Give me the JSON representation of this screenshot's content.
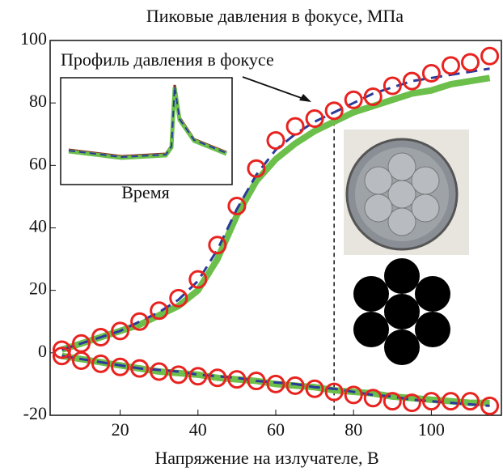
{
  "chart_data": {
    "type": "line",
    "title": "Пиковые давления в фокусе, МПа",
    "xlabel": "Напряжение на излучателе, В",
    "annotations": [
      "Профиль давления в фокусе",
      "Время"
    ],
    "x": [
      5,
      10,
      15,
      20,
      25,
      30,
      35,
      40,
      45,
      50,
      55,
      60,
      65,
      70,
      75,
      80,
      85,
      90,
      95,
      100,
      105,
      110,
      115
    ],
    "series": [
      {
        "type": "line",
        "color": "#6cbf4a",
        "dashed": false,
        "values": [
          1,
          3,
          5,
          7,
          9,
          12,
          15,
          20,
          30,
          44,
          55,
          62,
          67,
          71,
          74,
          77,
          79,
          81,
          83,
          84,
          86,
          87,
          88
        ]
      },
      {
        "type": "line",
        "color": "#6cbf4a",
        "dashed": false,
        "values": [
          -1,
          -2,
          -3,
          -4,
          -5,
          -6,
          -6.5,
          -7,
          -8,
          -8.5,
          -9,
          -10,
          -10.5,
          -11,
          -12,
          -12.5,
          -13,
          -14,
          -14.5,
          -15,
          -15.5,
          -16,
          -16
        ]
      },
      {
        "type": "line",
        "color": "#2a3a9a",
        "dashed": true,
        "values": [
          1,
          3,
          5,
          7,
          10,
          13,
          17,
          23,
          33,
          46,
          57,
          65,
          70,
          74,
          77,
          80,
          83,
          85,
          87,
          88,
          89,
          90,
          91
        ]
      },
      {
        "type": "line",
        "color": "#2a3a9a",
        "dashed": true,
        "values": [
          -1,
          -2,
          -3,
          -4,
          -5,
          -5.5,
          -6,
          -7,
          -7.5,
          -8,
          -9,
          -9.5,
          -10,
          -11,
          -11.5,
          -12.5,
          -13.5,
          -14,
          -15,
          -15.5,
          -16,
          -16.5,
          -17
        ]
      },
      {
        "type": "scatter",
        "color": "#e8231f",
        "values": [
          1,
          3,
          5,
          7,
          10,
          13.5,
          17.5,
          23.5,
          34.5,
          47,
          59,
          68,
          72.5,
          75,
          77.5,
          81,
          82,
          85.5,
          87,
          89.5,
          92,
          93,
          95
        ]
      },
      {
        "type": "scatter",
        "color": "#e8231f",
        "values": [
          -1,
          -2.5,
          -3.5,
          -4.5,
          -5,
          -6,
          -7,
          -7.5,
          -8,
          -8.5,
          -9,
          -10,
          -10.5,
          -11.5,
          -12.5,
          -13.5,
          -14.5,
          -15.5,
          -16,
          -15.5,
          -15.5,
          -15.5,
          -17
        ]
      }
    ],
    "vline_x": 75,
    "xlim": [
      2,
      118
    ],
    "xticks": [
      20,
      40,
      60,
      80,
      100
    ],
    "ylim": [
      -20,
      100
    ],
    "yticks": [
      -20,
      0,
      20,
      40,
      60,
      80,
      100
    ]
  }
}
